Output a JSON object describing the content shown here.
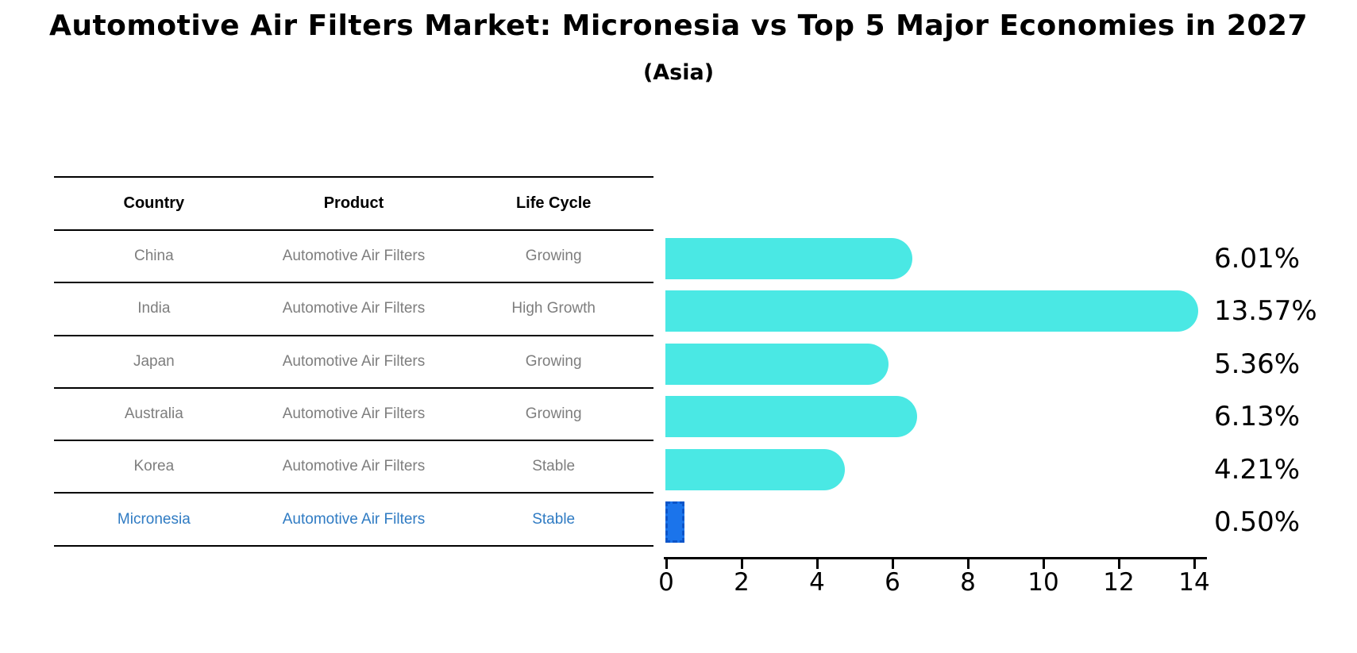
{
  "title": "Automotive Air Filters Market: Micronesia vs Top 5 Major Economies in 2027",
  "subtitle": "(Asia)",
  "table": {
    "columns": [
      "Country",
      "Product",
      "Life Cycle"
    ],
    "rows": [
      {
        "country": "China",
        "product": "Automotive Air Filters",
        "life_cycle": "Growing",
        "highlight": false
      },
      {
        "country": "India",
        "product": "Automotive Air Filters",
        "life_cycle": "High Growth",
        "highlight": false
      },
      {
        "country": "Japan",
        "product": "Automotive Air Filters",
        "life_cycle": "Growing",
        "highlight": false
      },
      {
        "country": "Australia",
        "product": "Automotive Air Filters",
        "life_cycle": "Growing",
        "highlight": false
      },
      {
        "country": "Korea",
        "product": "Automotive Air Filters",
        "life_cycle": "Stable",
        "highlight": false
      },
      {
        "country": "Micronesia",
        "product": "Automotive Air Filters",
        "life_cycle": "Stable",
        "highlight": true
      }
    ]
  },
  "chart_data": {
    "type": "bar",
    "orientation": "horizontal",
    "title": "Automotive Air Filters Market: Micronesia vs Top 5 Major Economies in 2027 (Asia)",
    "categories": [
      "China",
      "India",
      "Japan",
      "Australia",
      "Korea",
      "Micronesia"
    ],
    "values": [
      6.01,
      13.57,
      5.36,
      6.13,
      4.21,
      0.5
    ],
    "value_labels": [
      "6.01%",
      "13.57%",
      "5.36%",
      "6.13%",
      "4.21%",
      "0.50%"
    ],
    "xlim": [
      0,
      14
    ],
    "xticks": [
      "0",
      "2",
      "4",
      "6",
      "8",
      "10",
      "12",
      "14"
    ],
    "grid": false,
    "legend": null,
    "highlight_category": "Micronesia",
    "bar_color": "#4ae8e4",
    "highlight_bar_color": "#1b74eb",
    "highlight_dash_color": "#0d55c9",
    "text_color": "#000000",
    "table_text_color": "#7e7e7e",
    "highlight_text_color": "#2f7bc3"
  }
}
